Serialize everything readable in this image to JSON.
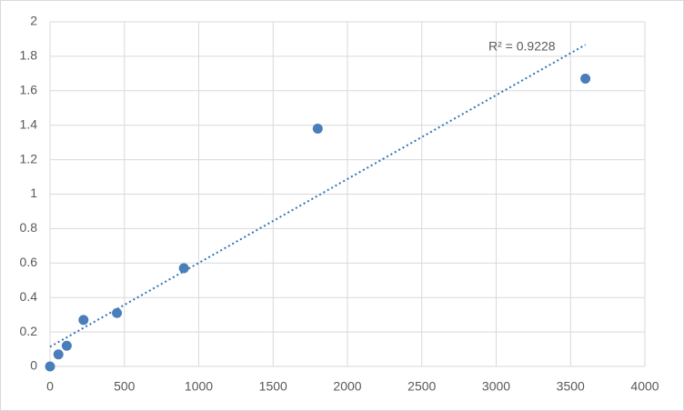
{
  "chart_data": {
    "type": "scatter",
    "x": [
      0,
      56.25,
      112.5,
      225,
      450,
      900,
      1800,
      3600
    ],
    "values": [
      0,
      0.07,
      0.12,
      0.27,
      0.31,
      0.57,
      1.38,
      1.67
    ],
    "color": "#4a7ebb",
    "trendline": "linear",
    "trendline_color": "#2e75b6",
    "annotation": "R² = 0.9228",
    "xlim": [
      0,
      4000
    ],
    "xticks": [
      0,
      500,
      1000,
      1500,
      2000,
      2500,
      3000,
      3500,
      4000
    ],
    "ylim": [
      0,
      2
    ],
    "yticks": [
      0,
      0.2,
      0.4,
      0.6,
      0.8,
      1,
      1.2,
      1.4,
      1.6,
      1.8,
      2
    ],
    "grid": true
  }
}
